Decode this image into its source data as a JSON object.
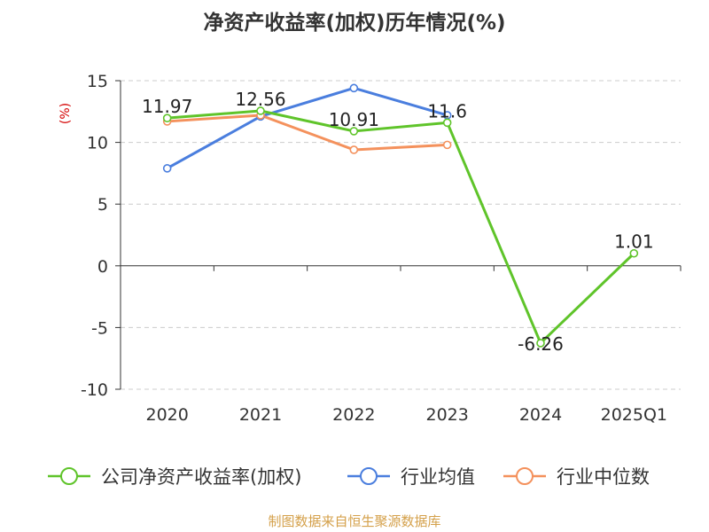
{
  "chart_data": {
    "type": "line",
    "title": "净资产收益率(加权)历年情况(%)",
    "ylabel": "(%)",
    "xlabel": "",
    "categories": [
      "2020",
      "2021",
      "2022",
      "2023",
      "2024",
      "2025Q1"
    ],
    "ylim": [
      -10,
      15
    ],
    "yticks": [
      15,
      10,
      5,
      0,
      -5,
      -10
    ],
    "series": [
      {
        "name": "公司净资产收益率(加权)",
        "color": "#5fc42a",
        "values": [
          11.97,
          12.56,
          10.91,
          11.6,
          -6.26,
          1.01
        ],
        "labels": [
          "11.97",
          "12.56",
          "10.91",
          "11.6",
          "-6.26",
          "1.01"
        ]
      },
      {
        "name": "行业均值",
        "color": "#4a7ede",
        "values": [
          7.9,
          12.1,
          14.4,
          12.2,
          null,
          null
        ]
      },
      {
        "name": "行业中位数",
        "color": "#f4915c",
        "values": [
          11.7,
          12.2,
          9.4,
          9.8,
          null,
          null
        ]
      }
    ]
  },
  "footer": "制图数据来自恒生聚源数据库"
}
